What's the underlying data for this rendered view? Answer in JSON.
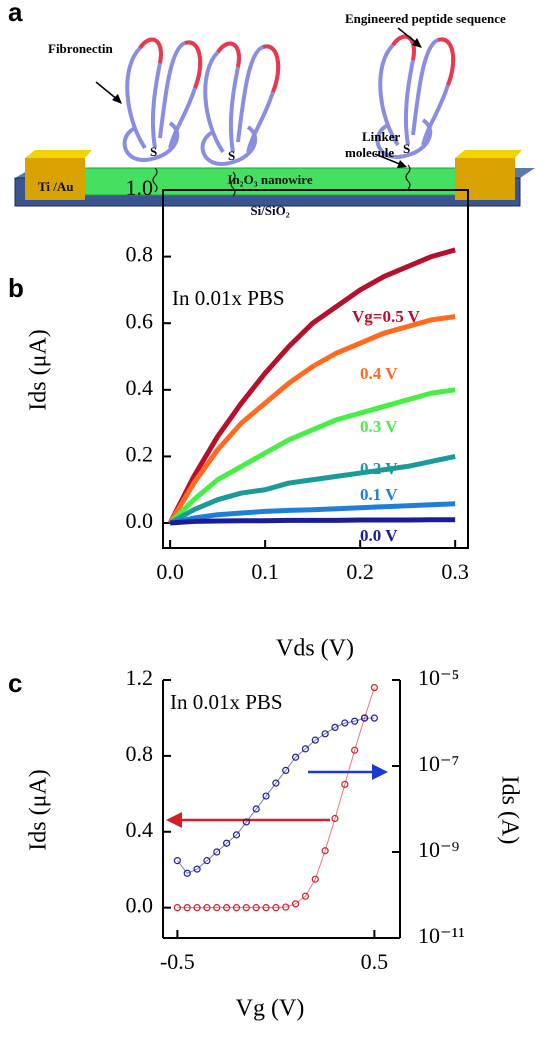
{
  "diagram": {
    "panel": "a",
    "fibronectin": "Fibronectin",
    "peptide": "Engineered peptide sequence",
    "linker": [
      "Linker",
      "molecule"
    ],
    "sulfur": [
      "S",
      "S",
      "S"
    ],
    "electrode": "Ti /Au",
    "nanowire": "In₂O₃ nanowire",
    "substrate": "Si/SiO₂"
  },
  "chart_data": [
    {
      "type": "line",
      "panel": "b",
      "annotation": "In 0.01x PBS",
      "xlabel": "Vds (V)",
      "ylabel": "Ids (μA)",
      "x": [
        0,
        0.025,
        0.05,
        0.075,
        0.1,
        0.125,
        0.15,
        0.175,
        0.2,
        0.225,
        0.25,
        0.275,
        0.3
      ],
      "xlim": [
        -0.0075,
        0.3135
      ],
      "xticks": [
        {
          "value": 0,
          "label": "0.0"
        },
        0.1,
        0.2,
        0.3
      ],
      "ylim": [
        -0.075,
        1.0
      ],
      "yticks": [
        {
          "value": 0,
          "label": "0.0"
        },
        0.2,
        0.4,
        0.6,
        0.8,
        {
          "value": 1.0,
          "label": "1.0"
        }
      ],
      "series": [
        {
          "name": "Vg=0.5 V",
          "color": "#b5102c",
          "values": [
            0,
            0.14,
            0.26,
            0.36,
            0.45,
            0.53,
            0.6,
            0.65,
            0.7,
            0.74,
            0.77,
            0.8,
            0.82
          ]
        },
        {
          "name": "0.4 V",
          "color": "#ff6a1f",
          "values": [
            0,
            0.12,
            0.22,
            0.3,
            0.36,
            0.42,
            0.47,
            0.51,
            0.54,
            0.57,
            0.59,
            0.61,
            0.62
          ]
        },
        {
          "name": "0.3 V",
          "color": "#46ee46",
          "values": [
            0,
            0.07,
            0.13,
            0.17,
            0.21,
            0.25,
            0.28,
            0.31,
            0.33,
            0.35,
            0.37,
            0.39,
            0.4
          ]
        },
        {
          "name": "0.2 V",
          "color": "#1a9a9a",
          "values": [
            0,
            0.04,
            0.07,
            0.09,
            0.1,
            0.12,
            0.13,
            0.14,
            0.15,
            0.16,
            0.17,
            0.185,
            0.2
          ]
        },
        {
          "name": "0.1 V",
          "color": "#1f7fd8",
          "values": [
            0,
            0.015,
            0.025,
            0.03,
            0.035,
            0.038,
            0.04,
            0.043,
            0.046,
            0.049,
            0.052,
            0.055,
            0.058
          ]
        },
        {
          "name": "0.0 V",
          "color": "#1c1c9a",
          "values": [
            0,
            0.005,
            0.006,
            0.007,
            0.007,
            0.008,
            0.008,
            0.008,
            0.009,
            0.009,
            0.009,
            0.01,
            0.01
          ]
        }
      ]
    },
    {
      "type": "scatter",
      "panel": "c",
      "annotation": "In 0.01x PBS",
      "xlabel": "Vg (V)",
      "ylabel": "Ids (μA)",
      "y2label": "Ids (A)",
      "x": [
        -0.5,
        -0.45,
        -0.4,
        -0.35,
        -0.3,
        -0.25,
        -0.2,
        -0.15,
        -0.1,
        -0.05,
        0,
        0.05,
        0.1,
        0.15,
        0.2,
        0.25,
        0.3,
        0.35,
        0.4,
        0.45,
        0.5
      ],
      "xlim": [
        -0.573,
        0.63
      ],
      "xticks": [
        -0.5,
        0.5
      ],
      "ylim": [
        -0.16,
        1.2
      ],
      "yticks": [
        {
          "value": 0,
          "label": "0.0"
        },
        0.4,
        0.8,
        1.2
      ],
      "y2lim": [
        1e-11,
        1e-05
      ],
      "y2log": true,
      "y2ticks": [
        {
          "value": 1e-11,
          "label": "10⁻¹¹"
        },
        {
          "value": 1e-09,
          "label": "10⁻⁹"
        },
        {
          "value": 1e-07,
          "label": "10⁻⁷"
        },
        {
          "value": 1e-05,
          "label": "10⁻⁵"
        }
      ],
      "series": [
        {
          "color": "#d0202a",
          "values": [
            0,
            0,
            0,
            0,
            0,
            0,
            0,
            0,
            0,
            0,
            0,
            0.003,
            0.02,
            0.06,
            0.15,
            0.3,
            0.47,
            0.65,
            0.83,
            1.0,
            1.16
          ]
        },
        {
          "color": "#1f1f9a",
          "axis": "y2",
          "values": [
            6.3e-10,
            3.2e-10,
            4e-10,
            6.3e-10,
            1e-09,
            1.6e-09,
            2.5e-09,
            5e-09,
            1e-08,
            2e-08,
            4e-08,
            7.9e-08,
            1.6e-07,
            2.5e-07,
            4e-07,
            5.6e-07,
            7.9e-07,
            1e-06,
            1.1e-06,
            1.3e-06,
            1.3e-06
          ]
        }
      ]
    }
  ]
}
